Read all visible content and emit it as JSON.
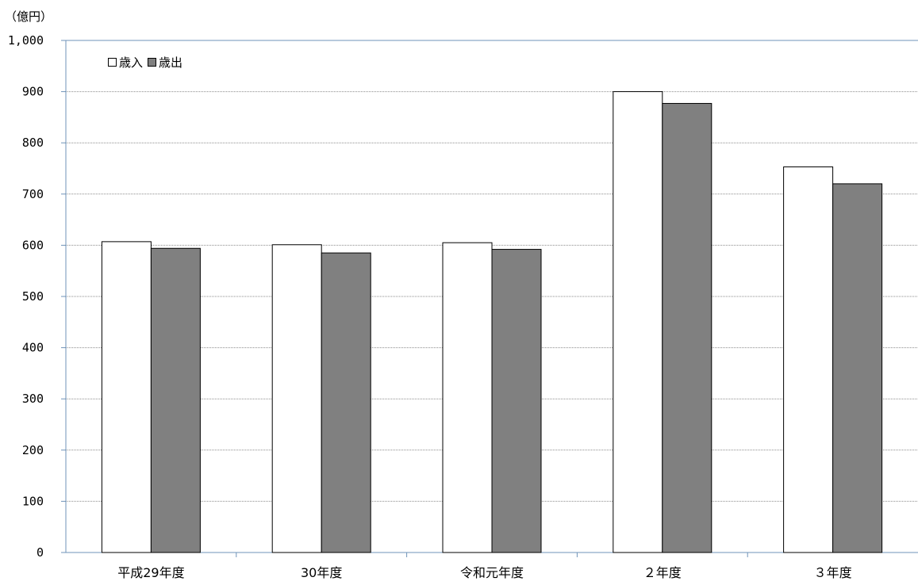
{
  "chart_data": {
    "type": "bar",
    "unit_label": "（億円）",
    "categories": [
      "平成29年度",
      "30年度",
      "令和元年度",
      "２年度",
      "３年度"
    ],
    "series": [
      {
        "name": "歳入",
        "values": [
          607,
          601,
          605,
          900,
          753
        ],
        "color": "#ffffff"
      },
      {
        "name": "歳出",
        "values": [
          594,
          585,
          592,
          877,
          720
        ],
        "color": "#808080"
      }
    ],
    "ylim": [
      0,
      1000
    ],
    "yticks": [
      0,
      100,
      200,
      300,
      400,
      500,
      600,
      700,
      800,
      900,
      1000
    ],
    "ytick_labels": [
      "0",
      "100",
      "200",
      "300",
      "400",
      "500",
      "600",
      "700",
      "800",
      "900",
      "1,000"
    ],
    "grid": true,
    "legend_position": "top-left"
  }
}
